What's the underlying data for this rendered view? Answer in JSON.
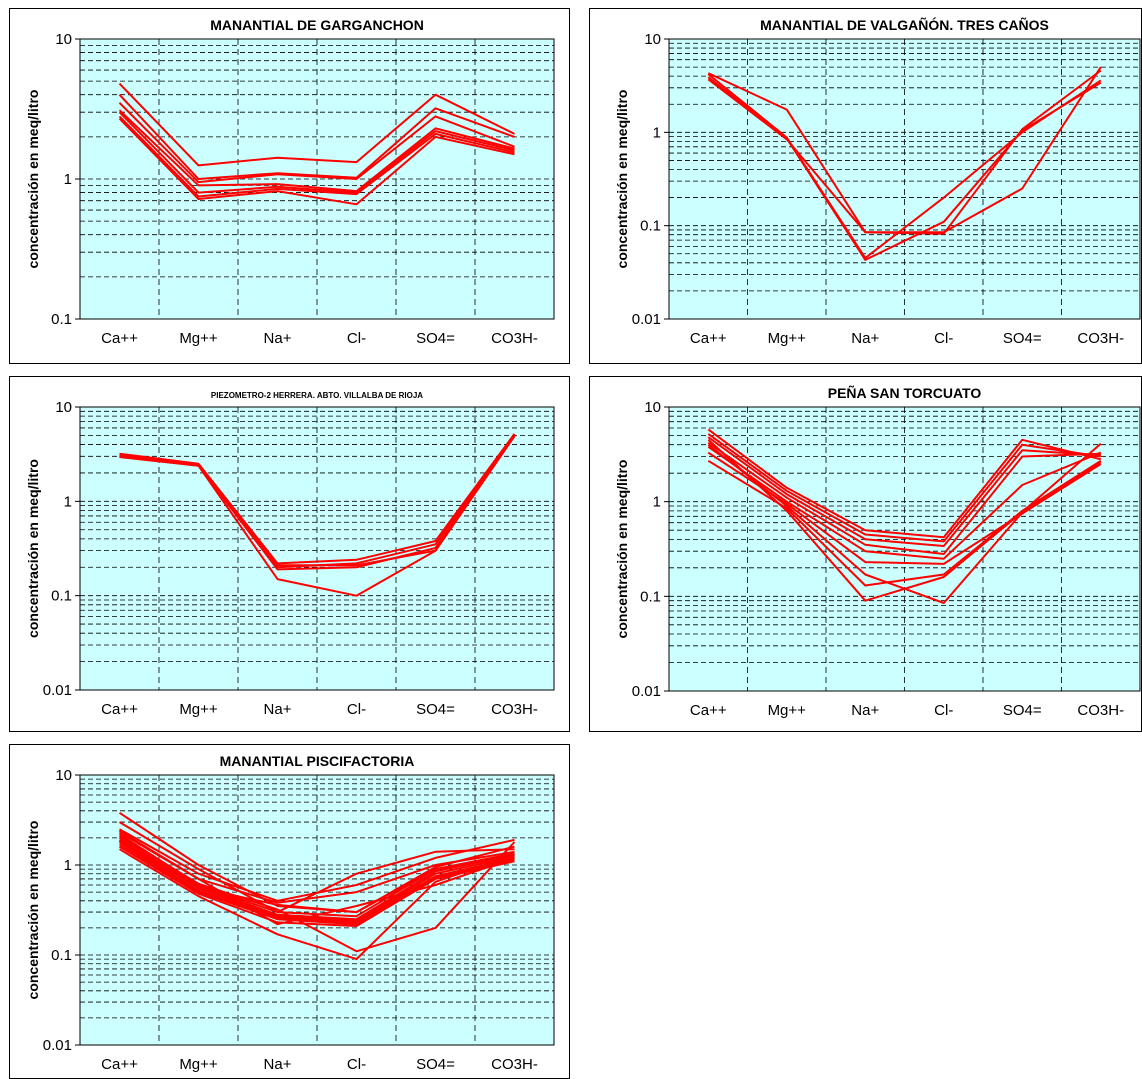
{
  "chart_data": [
    {
      "type": "line",
      "title": "MANANTIAL DE GARGANCHON",
      "ylabel": "concentración en meq/litro",
      "yscale": "log",
      "ylim": [
        0.1,
        10
      ],
      "yticks": [
        "0.1",
        "1",
        "10"
      ],
      "categories": [
        "Ca++",
        "Mg++",
        "Na+",
        "Cl-",
        "SO4=",
        "CO3H-"
      ],
      "grid": true,
      "line_color": "#ff0000",
      "plot_bg": "#ccffff",
      "series": [
        {
          "values": [
            4.8,
            1.25,
            1.42,
            1.32,
            4.0,
            2.1
          ]
        },
        {
          "values": [
            4.0,
            1.0,
            1.1,
            1.02,
            3.2,
            2.0
          ]
        },
        {
          "values": [
            3.5,
            0.95,
            1.08,
            1.0,
            2.8,
            1.7
          ]
        },
        {
          "values": [
            3.1,
            0.9,
            0.92,
            0.82,
            2.3,
            1.65
          ]
        },
        {
          "values": [
            3.0,
            0.8,
            0.88,
            0.8,
            2.2,
            1.6
          ]
        },
        {
          "values": [
            2.8,
            0.75,
            0.85,
            0.78,
            2.1,
            1.55
          ]
        },
        {
          "values": [
            2.7,
            0.72,
            0.82,
            0.66,
            2.0,
            1.5
          ]
        }
      ]
    },
    {
      "type": "line",
      "title": "MANANTIAL DE VALGAÑÓN. TRES CAÑOS",
      "ylabel": "concentración en meq/litro",
      "yscale": "log",
      "ylim": [
        0.01,
        10
      ],
      "yticks": [
        "0.01",
        "0.1",
        "1",
        "10"
      ],
      "categories": [
        "Ca++",
        "Mg++",
        "Na+",
        "Cl-",
        "SO4=",
        "CO3H-"
      ],
      "grid": true,
      "line_color": "#ff0000",
      "plot_bg": "#ccffff",
      "series": [
        {
          "values": [
            4.3,
            1.75,
            0.085,
            0.085,
            0.25,
            5.0
          ]
        },
        {
          "values": [
            4.2,
            0.88,
            0.045,
            0.2,
            1.0,
            3.6
          ]
        },
        {
          "values": [
            3.9,
            0.86,
            0.043,
            0.11,
            1.05,
            3.4
          ]
        },
        {
          "values": [
            3.7,
            0.84,
            0.085,
            0.082,
            1.08,
            4.6
          ]
        }
      ]
    },
    {
      "type": "line",
      "title": "PIEZOMETRO-2 HERRERA. ABTO. VILLALBA DE RIOJA",
      "ylabel": "concentración en meq/litro",
      "yscale": "log",
      "ylim": [
        0.01,
        10
      ],
      "yticks": [
        "0.01",
        "0.1",
        "1",
        "10"
      ],
      "categories": [
        "Ca++",
        "Mg++",
        "Na+",
        "Cl-",
        "SO4=",
        "CO3H-"
      ],
      "grid": true,
      "line_color": "#ff0000",
      "plot_bg": "#ccffff",
      "series": [
        {
          "values": [
            3.2,
            2.5,
            0.22,
            0.24,
            0.38,
            5.2
          ]
        },
        {
          "values": [
            3.1,
            2.45,
            0.2,
            0.22,
            0.35,
            5.1
          ]
        },
        {
          "values": [
            3.0,
            2.4,
            0.19,
            0.2,
            0.32,
            5.0
          ]
        },
        {
          "values": [
            3.05,
            2.42,
            0.21,
            0.21,
            0.3,
            4.9
          ]
        },
        {
          "values": [
            2.95,
            2.38,
            0.15,
            0.1,
            0.3,
            5.0
          ]
        }
      ]
    },
    {
      "type": "line",
      "title": "PEÑA SAN TORCUATO",
      "ylabel": "concentración en meq/litro",
      "yscale": "log",
      "ylim": [
        0.01,
        10
      ],
      "yticks": [
        "0.01",
        "0.1",
        "1",
        "10"
      ],
      "categories": [
        "Ca++",
        "Mg++",
        "Na+",
        "Cl-",
        "SO4=",
        "CO3H-"
      ],
      "grid": true,
      "line_color": "#ff0000",
      "plot_bg": "#ccffff",
      "series": [
        {
          "values": [
            5.8,
            1.4,
            0.5,
            0.42,
            4.5,
            2.8
          ]
        },
        {
          "values": [
            5.2,
            1.3,
            0.45,
            0.38,
            4.0,
            3.0
          ]
        },
        {
          "values": [
            4.8,
            1.2,
            0.4,
            0.34,
            3.5,
            3.1
          ]
        },
        {
          "values": [
            4.2,
            1.1,
            0.35,
            0.28,
            3.0,
            3.2
          ]
        },
        {
          "values": [
            3.8,
            1.0,
            0.3,
            0.25,
            1.5,
            3.3
          ]
        },
        {
          "values": [
            3.3,
            0.95,
            0.23,
            0.22,
            0.75,
            2.5
          ]
        },
        {
          "values": [
            2.7,
            0.85,
            0.13,
            0.17,
            0.8,
            2.7
          ]
        },
        {
          "values": [
            4.5,
            0.8,
            0.09,
            0.16,
            0.78,
            4.1
          ]
        },
        {
          "values": [
            4.0,
            0.9,
            0.17,
            0.085,
            0.77,
            2.6
          ]
        }
      ]
    },
    {
      "type": "line",
      "title": "MANANTIAL PISCIFACTORIA",
      "ylabel": "concentración en meq/litro",
      "yscale": "log",
      "ylim": [
        0.01,
        10
      ],
      "yticks": [
        "0.01",
        "0.1",
        "1",
        "10"
      ],
      "categories": [
        "Ca++",
        "Mg++",
        "Na+",
        "Cl-",
        "SO4=",
        "CO3H-"
      ],
      "grid": true,
      "line_color": "#ff0000",
      "plot_bg": "#ccffff",
      "series": [
        {
          "values": [
            3.8,
            1.0,
            0.35,
            0.3,
            0.9,
            1.3
          ]
        },
        {
          "values": [
            3.0,
            0.9,
            0.3,
            0.8,
            1.4,
            1.5
          ]
        },
        {
          "values": [
            2.5,
            0.8,
            0.4,
            0.6,
            1.2,
            1.9
          ]
        },
        {
          "values": [
            2.3,
            0.7,
            0.38,
            0.5,
            1.0,
            1.4
          ]
        },
        {
          "values": [
            2.2,
            0.6,
            0.3,
            0.27,
            0.9,
            1.35
          ]
        },
        {
          "values": [
            2.0,
            0.58,
            0.28,
            0.25,
            0.85,
            1.3
          ]
        },
        {
          "values": [
            1.9,
            0.55,
            0.27,
            0.24,
            0.8,
            1.25
          ]
        },
        {
          "values": [
            1.8,
            0.52,
            0.26,
            0.23,
            0.75,
            1.2
          ]
        },
        {
          "values": [
            1.7,
            0.5,
            0.25,
            0.22,
            0.72,
            1.15
          ]
        },
        {
          "values": [
            1.6,
            0.48,
            0.23,
            0.21,
            0.7,
            1.1
          ]
        },
        {
          "values": [
            1.5,
            0.45,
            0.17,
            0.09,
            0.65,
            1.3
          ]
        },
        {
          "values": [
            2.1,
            0.62,
            0.32,
            0.11,
            0.2,
            1.8
          ]
        },
        {
          "values": [
            2.4,
            0.7,
            0.22,
            0.35,
            0.6,
            1.2
          ]
        },
        {
          "values": [
            1.85,
            0.56,
            0.36,
            0.3,
            0.95,
            1.6
          ]
        }
      ]
    }
  ]
}
